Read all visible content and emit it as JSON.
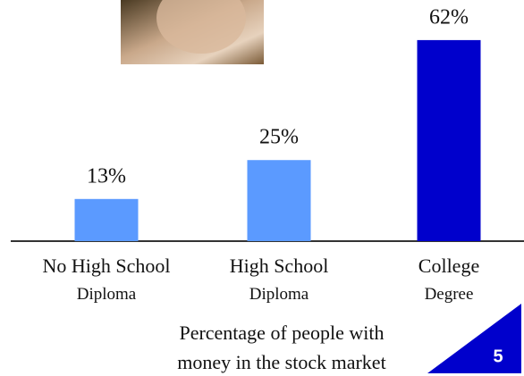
{
  "chart_data": {
    "type": "bar",
    "categories": [
      "No High School\nDiploma",
      "High School\nDiploma",
      "College\nDegree"
    ],
    "values": [
      13,
      25,
      62
    ],
    "value_labels": [
      "13%",
      "25%",
      "62%"
    ],
    "colors": [
      "#5b9aff",
      "#5b9aff",
      "#0000cc"
    ],
    "ylim": [
      0,
      65
    ],
    "caption": "Percentage of people with\nmoney in the stock market"
  },
  "slide_number": "5"
}
